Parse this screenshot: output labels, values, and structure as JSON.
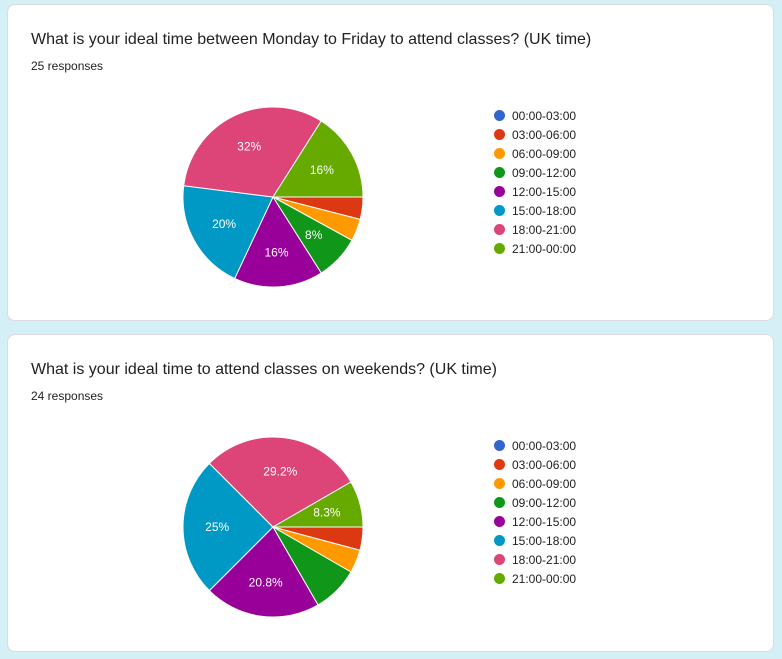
{
  "colors": [
    "#3366cc",
    "#dc3912",
    "#ff9900",
    "#109618",
    "#990099",
    "#0099c6",
    "#dd4477",
    "#66aa00"
  ],
  "chart_data": [
    {
      "type": "pie",
      "title": "What is your ideal time between Monday to Friday to attend classes? (UK time)",
      "subtitle": "25 responses",
      "legend_position": "right",
      "categories": [
        "00:00-03:00",
        "03:00-06:00",
        "06:00-09:00",
        "09:00-12:00",
        "12:00-15:00",
        "15:00-18:00",
        "18:00-21:00",
        "21:00-00:00"
      ],
      "values": [
        0,
        1,
        1,
        2,
        4,
        5,
        8,
        4
      ],
      "slice_labels": [
        "",
        "",
        "",
        "8%",
        "16%",
        "20%",
        "32%",
        "16%"
      ]
    },
    {
      "type": "pie",
      "title": "What is your ideal time to attend classes on weekends? (UK time)",
      "subtitle": "24 responses",
      "legend_position": "right",
      "categories": [
        "00:00-03:00",
        "03:00-06:00",
        "06:00-09:00",
        "09:00-12:00",
        "12:00-15:00",
        "15:00-18:00",
        "18:00-21:00",
        "21:00-00:00"
      ],
      "values": [
        0,
        1,
        1,
        2,
        5,
        6,
        7,
        2
      ],
      "slice_labels": [
        "",
        "",
        "",
        "",
        "20.8%",
        "25%",
        "29.2%",
        "8.3%"
      ]
    }
  ]
}
